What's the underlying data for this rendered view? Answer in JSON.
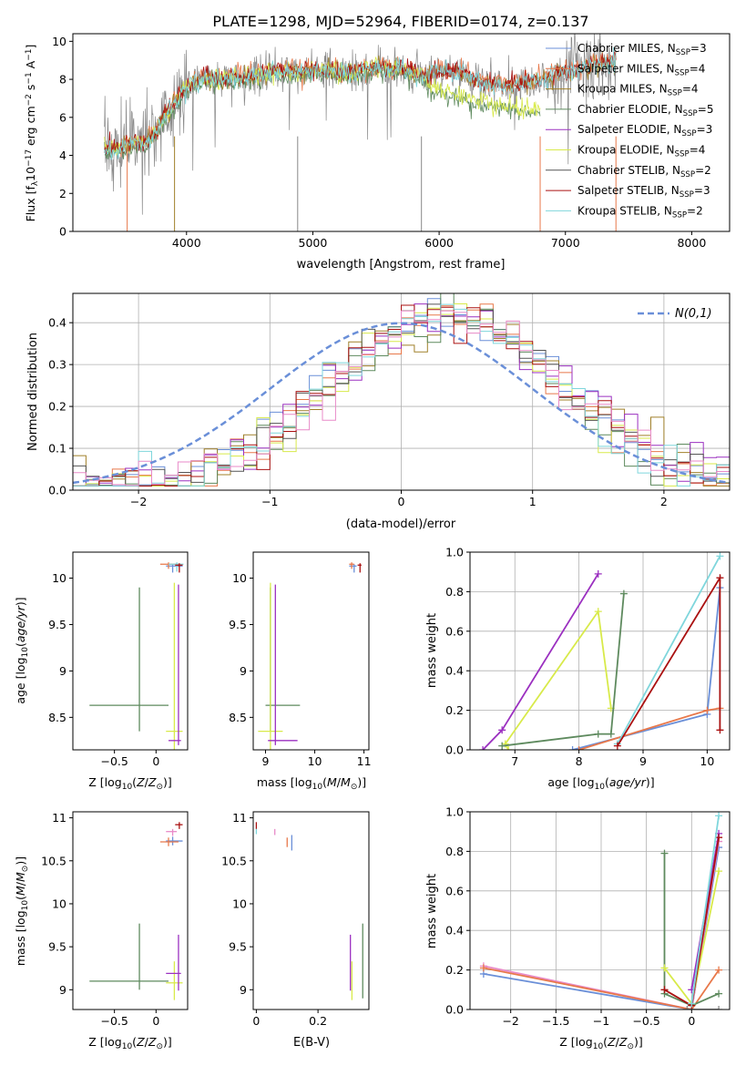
{
  "title": "PLATE=1298, MJD=52964, FIBERID=0174, z=0.137",
  "colors": {
    "Chabrier MILES": "#6a8fd8",
    "Salpeter MILES": "#e8784a",
    "Kroupa MILES": "#a0802a",
    "Chabrier ELODIE": "#5e8a5e",
    "Salpeter ELODIE": "#9b30c0",
    "Kroupa ELODIE": "#d8ea4a",
    "Chabrier STELIB": "#555555",
    "Salpeter STELIB": "#aa1111",
    "Kroupa STELIB": "#7fd6dc",
    "Salpeter MILES Z": "#e8784a",
    "Pink": "#e88ac8",
    "Gray": "#888888"
  },
  "chart_data": [
    {
      "id": "spectrum",
      "type": "line",
      "xlabel": "wavelength [Angstrom, rest frame]",
      "ylabel": "Flux [f_λ 10^-17 erg cm^-2 s^-1 A^-1]",
      "xlim": [
        3100,
        8300
      ],
      "ylim": [
        0,
        10.4
      ],
      "xticks": [
        4000,
        5000,
        6000,
        7000,
        8000
      ],
      "yticks": [
        0,
        2,
        4,
        6,
        8,
        10
      ],
      "legend": [
        {
          "name": "Chabrier MILES",
          "nssp": "3"
        },
        {
          "name": "Salpeter MILES",
          "nssp": "4"
        },
        {
          "name": "Kroupa MILES",
          "nssp": "4"
        },
        {
          "name": "Chabrier ELODIE",
          "nssp": "5"
        },
        {
          "name": "Salpeter ELODIE",
          "nssp": "3"
        },
        {
          "name": "Kroupa ELODIE",
          "nssp": "4"
        },
        {
          "name": "Chabrier STELIB",
          "nssp": "2"
        },
        {
          "name": "Salpeter STELIB",
          "nssp": "3"
        },
        {
          "name": "Kroupa STELIB",
          "nssp": "2"
        }
      ],
      "legend_placement": "top-right",
      "model_continuum": [
        [
          3350,
          4.3
        ],
        [
          3450,
          4.3
        ],
        [
          3550,
          4.6
        ],
        [
          3650,
          4.6
        ],
        [
          3750,
          5.2
        ],
        [
          3850,
          6.3
        ],
        [
          3950,
          7.2
        ],
        [
          4050,
          7.8
        ],
        [
          4150,
          8.0
        ],
        [
          4300,
          8.0
        ],
        [
          4500,
          8.2
        ],
        [
          4700,
          8.4
        ],
        [
          4900,
          8.4
        ],
        [
          5100,
          8.5
        ],
        [
          5300,
          8.3
        ],
        [
          5500,
          8.6
        ],
        [
          5700,
          8.5
        ],
        [
          5900,
          8.2
        ],
        [
          6000,
          8.4
        ],
        [
          6200,
          8.3
        ],
        [
          6300,
          7.9
        ],
        [
          6500,
          7.6
        ],
        [
          6700,
          7.9
        ],
        [
          6800,
          7.9
        ],
        [
          7000,
          8.4
        ],
        [
          7400,
          8.9
        ]
      ],
      "elodie_low_red": [
        [
          5900,
          7.6
        ],
        [
          6100,
          7.3
        ],
        [
          6300,
          6.9
        ],
        [
          6500,
          6.6
        ],
        [
          6800,
          6.4
        ]
      ]
    },
    {
      "id": "residuals",
      "type": "histogram",
      "xlabel": "(data-model)/error",
      "ylabel": "Normed distribution",
      "xlim": [
        -2.5,
        2.5
      ],
      "ylim": [
        0,
        0.47
      ],
      "xticks": [
        -2,
        -1,
        0,
        1,
        2
      ],
      "yticks": [
        0.0,
        0.1,
        0.2,
        0.3,
        0.4
      ],
      "bin_width": 0.1,
      "reference_label": "N(0,1)",
      "legend_placement": "top-right",
      "grid": true
    },
    {
      "id": "age_vs_Z",
      "type": "errorbar",
      "xlabel": "Z [log10(Z/Z_sun)]",
      "ylabel": "age  [log10(age/yr)]",
      "xlim": [
        -1.0,
        0.38
      ],
      "ylim": [
        8.15,
        10.28
      ],
      "xticks": [
        -0.5,
        0.0
      ],
      "yticks": [
        8.5,
        9.0,
        9.5,
        10.0
      ],
      "points": [
        {
          "series": "Chabrier ELODIE",
          "x": -0.2,
          "y": 8.63,
          "xerr": [
            0.6,
            0.35
          ],
          "yerr": [
            0.28,
            1.27
          ]
        },
        {
          "series": "Kroupa ELODIE",
          "x": 0.22,
          "y": 8.35,
          "xerr": [
            0.1,
            0.1
          ],
          "yerr": [
            0.2,
            1.6
          ]
        },
        {
          "series": "Salpeter ELODIE",
          "x": 0.27,
          "y": 8.25,
          "xerr": [
            0.12,
            0.03
          ],
          "yerr": [
            0.05,
            1.68
          ]
        },
        {
          "series": "Chabrier MILES",
          "x": 0.2,
          "y": 10.13,
          "xerr": [
            0.08,
            0.12
          ],
          "yerr": [
            0.07,
            0.02
          ]
        },
        {
          "series": "Salpeter MILES",
          "x": 0.15,
          "y": 10.15,
          "xerr": [
            0.1,
            0.12
          ],
          "yerr": [
            0.05,
            0.02
          ]
        },
        {
          "series": "Kroupa STELIB",
          "x": 0.25,
          "y": 10.15,
          "xerr": [
            0.1,
            0.08
          ],
          "yerr": [
            0.08,
            0.02
          ]
        },
        {
          "series": "Salpeter STELIB",
          "x": 0.28,
          "y": 10.14,
          "xerr": [
            0.05,
            0.04
          ],
          "yerr": [
            0.08,
            0.02
          ]
        }
      ]
    },
    {
      "id": "age_vs_mass",
      "type": "errorbar",
      "xlabel": "mass [log10(M/M_sun)]",
      "xlim": [
        8.75,
        11.1
      ],
      "ylim": [
        8.15,
        10.28
      ],
      "xticks": [
        9,
        10,
        11
      ],
      "yticks": [
        8.5,
        9.0,
        9.5,
        10.0
      ],
      "points": [
        {
          "series": "Chabrier ELODIE",
          "x": 9.1,
          "y": 8.63,
          "xerr": [
            0.1,
            0.6
          ],
          "yerr": [
            0.28,
            1.27
          ]
        },
        {
          "series": "Kroupa ELODIE",
          "x": 9.1,
          "y": 8.35,
          "xerr": [
            0.25,
            0.25
          ],
          "yerr": [
            0.2,
            1.6
          ]
        },
        {
          "series": "Salpeter ELODIE",
          "x": 9.2,
          "y": 8.25,
          "xerr": [
            0.15,
            0.45
          ],
          "yerr": [
            0.05,
            1.68
          ]
        },
        {
          "series": "Chabrier MILES",
          "x": 10.8,
          "y": 10.13,
          "xerr": [
            0.1,
            0.05
          ],
          "yerr": [
            0.07,
            0.02
          ]
        },
        {
          "series": "Salpeter MILES",
          "x": 10.75,
          "y": 10.15,
          "xerr": [
            0.05,
            0.05
          ],
          "yerr": [
            0.05,
            0.02
          ]
        },
        {
          "series": "Salpeter STELIB",
          "x": 10.92,
          "y": 10.14,
          "xerr": [
            0.05,
            0.03
          ],
          "yerr": [
            0.08,
            0.02
          ]
        }
      ]
    },
    {
      "id": "weight_vs_age",
      "type": "line",
      "xlabel": "age  [log10(age/yr)]",
      "ylabel": "mass weight",
      "xlim": [
        6.3,
        10.35
      ],
      "ylim": [
        0,
        1.0
      ],
      "xticks": [
        7,
        8,
        9,
        10
      ],
      "yticks": [
        0.0,
        0.2,
        0.4,
        0.6,
        0.8,
        1.0
      ],
      "grid": true,
      "series": [
        {
          "name": "Salpeter ELODIE",
          "x": [
            6.5,
            6.8,
            8.3
          ],
          "y": [
            0.0,
            0.1,
            0.89
          ]
        },
        {
          "name": "Kroupa ELODIE",
          "x": [
            6.9,
            6.85,
            8.3,
            8.5
          ],
          "y": [
            0.0,
            0.03,
            0.7,
            0.21
          ]
        },
        {
          "name": "Chabrier ELODIE",
          "x": [
            6.8,
            8.3,
            8.5,
            8.7
          ],
          "y": [
            0.02,
            0.08,
            0.08,
            0.79
          ]
        },
        {
          "name": "Chabrier MILES",
          "x": [
            7.9,
            10.0,
            10.2
          ],
          "y": [
            0.0,
            0.18,
            0.82
          ]
        },
        {
          "name": "Salpeter MILES",
          "x": [
            8.0,
            10.0,
            10.2
          ],
          "y": [
            0.0,
            0.2,
            0.21
          ]
        },
        {
          "name": "Kroupa STELIB",
          "x": [
            8.6,
            10.2
          ],
          "y": [
            0.03,
            0.98
          ]
        },
        {
          "name": "Salpeter STELIB",
          "x": [
            8.6,
            10.2,
            10.2
          ],
          "y": [
            0.02,
            0.87,
            0.1
          ]
        }
      ]
    },
    {
      "id": "mass_vs_Z",
      "type": "errorbar",
      "xlabel": "Z [log10(Z/Z_sun)]",
      "ylabel": "mass [log10(M/M_sun)]",
      "xlim": [
        -1.0,
        0.38
      ],
      "ylim": [
        8.77,
        11.07
      ],
      "xticks": [
        -0.5,
        0.0
      ],
      "yticks": [
        9.0,
        9.5,
        10.0,
        10.5,
        11.0
      ],
      "points": [
        {
          "series": "Chabrier ELODIE",
          "x": -0.2,
          "y": 9.1,
          "xerr": [
            0.6,
            0.35
          ],
          "yerr": [
            0.1,
            0.67
          ]
        },
        {
          "series": "Kroupa ELODIE",
          "x": 0.22,
          "y": 9.08,
          "xerr": [
            0.1,
            0.1
          ],
          "yerr": [
            0.2,
            0.25
          ]
        },
        {
          "series": "Salpeter ELODIE",
          "x": 0.27,
          "y": 9.19,
          "xerr": [
            0.15,
            0.03
          ],
          "yerr": [
            0.2,
            0.45
          ]
        },
        {
          "series": "Chabrier MILES",
          "x": 0.2,
          "y": 10.73,
          "xerr": [
            0.08,
            0.12
          ],
          "yerr": [
            0.05,
            0.05
          ]
        },
        {
          "series": "Salpeter MILES",
          "x": 0.15,
          "y": 10.72,
          "xerr": [
            0.1,
            0.12
          ],
          "yerr": [
            0.05,
            0.05
          ]
        },
        {
          "series": "Pink",
          "x": 0.2,
          "y": 10.84,
          "xerr": [
            0.08,
            0.05
          ],
          "yerr": [
            0.05,
            0.03
          ]
        },
        {
          "series": "Salpeter STELIB",
          "x": 0.28,
          "y": 10.92,
          "xerr": [
            0.05,
            0.04
          ],
          "yerr": [
            0.05,
            0.03
          ]
        }
      ]
    },
    {
      "id": "mass_vs_EBV",
      "type": "errorbar",
      "xlabel": "E(B-V)",
      "xlim": [
        -0.01,
        0.365
      ],
      "ylim": [
        8.77,
        11.07
      ],
      "xticks": [
        0.0,
        0.2
      ],
      "yticks": [
        9.0,
        9.5,
        10.0,
        10.5,
        11.0
      ],
      "points": [
        {
          "series": "Salpeter STELIB",
          "x": 0.0,
          "y": 10.92,
          "yerr": [
            0.05,
            0.03
          ]
        },
        {
          "series": "Kroupa STELIB",
          "x": 0.0,
          "y": 10.84,
          "yerr": [
            0.03,
            0.03
          ]
        },
        {
          "series": "Pink",
          "x": 0.06,
          "y": 10.84,
          "yerr": [
            0.04,
            0.03
          ]
        },
        {
          "series": "Salpeter MILES",
          "x": 0.1,
          "y": 10.72,
          "yerr": [
            0.06,
            0.05
          ]
        },
        {
          "series": "Chabrier MILES",
          "x": 0.115,
          "y": 10.7,
          "yerr": [
            0.08,
            0.1
          ]
        },
        {
          "series": "Salpeter ELODIE",
          "x": 0.305,
          "y": 9.19,
          "yerr": [
            0.2,
            0.45
          ]
        },
        {
          "series": "Kroupa ELODIE",
          "x": 0.31,
          "y": 9.08,
          "yerr": [
            0.2,
            0.25
          ]
        },
        {
          "series": "Chabrier ELODIE",
          "x": 0.345,
          "y": 9.1,
          "yerr": [
            0.2,
            0.67
          ]
        }
      ]
    },
    {
      "id": "weight_vs_Z",
      "type": "line",
      "xlabel": "Z [log10(Z/Z_sun)]",
      "ylabel": "mass weight",
      "xlim": [
        -2.45,
        0.42
      ],
      "ylim": [
        0,
        1.0
      ],
      "xticks": [
        -2.0,
        -1.5,
        -1.0,
        -0.5,
        0.0
      ],
      "yticks": [
        0.0,
        0.2,
        0.4,
        0.6,
        0.8,
        1.0
      ],
      "grid": true,
      "series": [
        {
          "name": "Chabrier MILES",
          "x": [
            -2.3,
            0.0,
            0.3
          ],
          "y": [
            0.18,
            0.0,
            0.82
          ]
        },
        {
          "name": "Pink",
          "x": [
            -2.3,
            0.0,
            0.3
          ],
          "y": [
            0.22,
            0.0,
            0.85
          ]
        },
        {
          "name": "Salpeter MILES",
          "x": [
            -2.3,
            0.0,
            0.3
          ],
          "y": [
            0.21,
            0.0,
            0.2
          ]
        },
        {
          "name": "Chabrier ELODIE",
          "x": [
            -0.3,
            -0.3,
            0.0,
            0.3
          ],
          "y": [
            0.79,
            0.08,
            0.02,
            0.08
          ]
        },
        {
          "name": "Kroupa ELODIE",
          "x": [
            -0.3,
            0.0,
            0.3
          ],
          "y": [
            0.21,
            0.03,
            0.7
          ]
        },
        {
          "name": "Salpeter ELODIE",
          "x": [
            0.0,
            0.3
          ],
          "y": [
            0.1,
            0.89
          ]
        },
        {
          "name": "Salpeter STELIB",
          "x": [
            -0.3,
            0.0,
            0.3
          ],
          "y": [
            0.1,
            0.02,
            0.87
          ]
        },
        {
          "name": "Kroupa STELIB",
          "x": [
            0.0,
            0.3
          ],
          "y": [
            0.03,
            0.98
          ]
        },
        {
          "name": "Gray",
          "x": [
            -0.05,
            0.3
          ],
          "y": [
            0.0,
            0.0
          ]
        }
      ]
    }
  ]
}
